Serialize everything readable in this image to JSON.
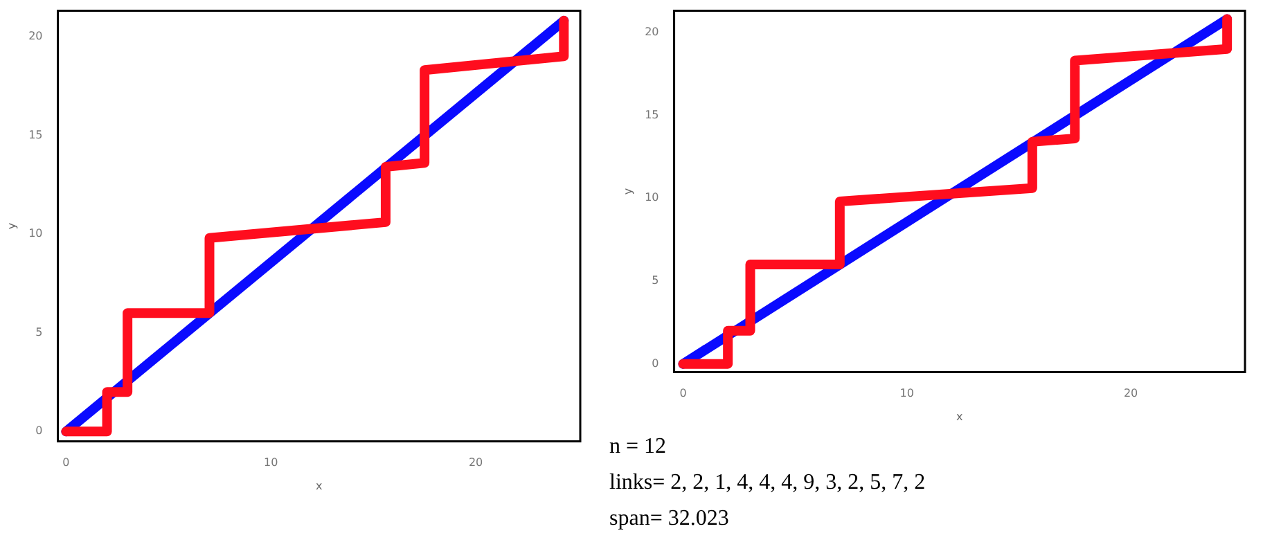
{
  "chart_data": [
    {
      "type": "line",
      "xlabel": "x",
      "ylabel": "y",
      "xlim": [
        -0.4,
        25.1
      ],
      "ylim": [
        -0.5,
        21.3
      ],
      "xticks": [
        0,
        10,
        20
      ],
      "yticks": [
        0,
        5,
        10,
        15,
        20
      ],
      "grid": false,
      "legend": false,
      "line_style": "solid",
      "series": [
        {
          "color": "#ff0d1e",
          "x": [
            0,
            2,
            2,
            3,
            3,
            7,
            7,
            15.6,
            15.6,
            17.5,
            17.5,
            24.3,
            24.3
          ],
          "values": [
            0,
            0,
            2,
            2,
            6,
            6,
            9.8,
            10.6,
            13.4,
            13.6,
            18.3,
            19,
            20.8
          ]
        },
        {
          "color": "#0a0aff",
          "x": [
            0,
            24.3
          ],
          "values": [
            0,
            20.8
          ]
        }
      ]
    },
    {
      "type": "line",
      "xlabel": "x",
      "ylabel": "y",
      "xlim": [
        -0.4,
        25.1
      ],
      "ylim": [
        -0.5,
        21.3
      ],
      "xticks": [
        0,
        10,
        20
      ],
      "yticks": [
        0,
        5,
        10,
        15,
        20
      ],
      "grid": false,
      "legend": false,
      "line_style": "solid",
      "series": [
        {
          "color": "#ff0d1e",
          "x": [
            0,
            2,
            2,
            3,
            3,
            7,
            7,
            15.6,
            15.6,
            17.5,
            17.5,
            24.3,
            24.3
          ],
          "values": [
            0,
            0,
            2,
            2,
            6,
            6,
            9.8,
            10.6,
            13.4,
            13.6,
            18.3,
            19,
            20.8
          ]
        },
        {
          "color": "#0a0aff",
          "x": [
            0,
            24.3
          ],
          "values": [
            0,
            20.8
          ]
        }
      ],
      "annotations": [
        "n = 12",
        "links= 2, 2, 1, 4, 4, 4, 9, 3, 2, 5, 7, 2",
        "span= 32.023"
      ]
    }
  ]
}
